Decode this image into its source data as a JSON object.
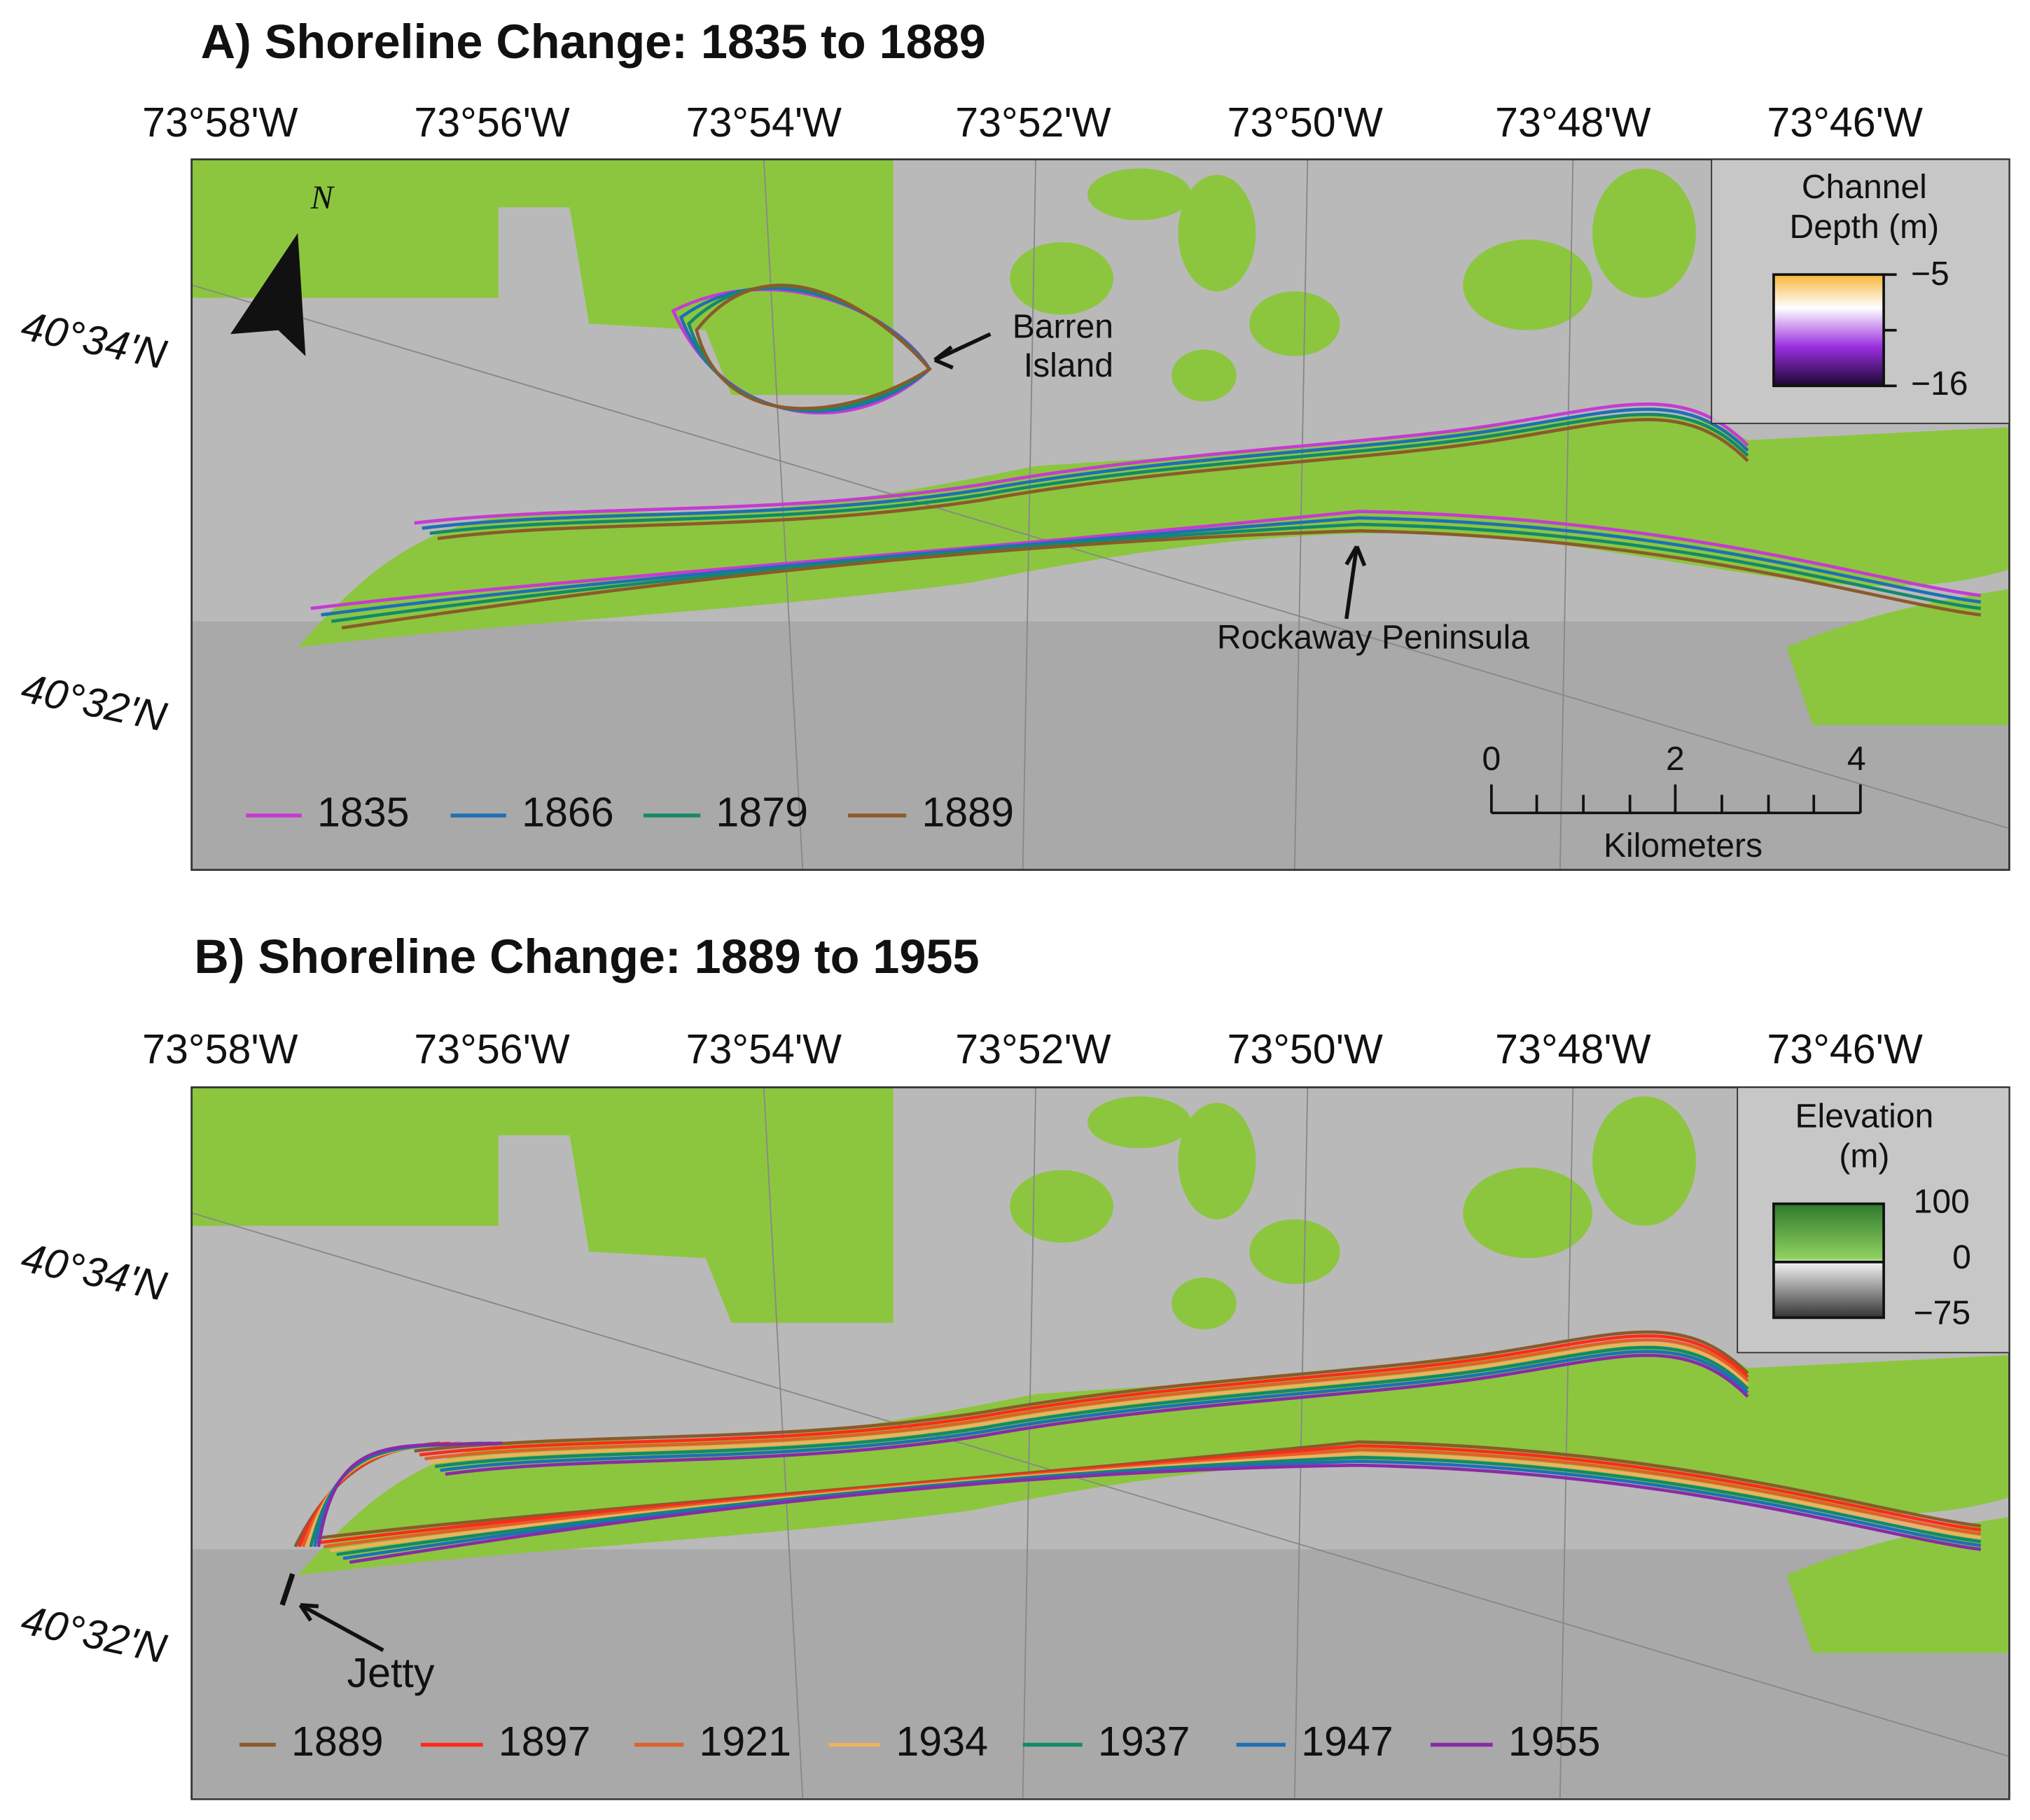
{
  "panels": [
    {
      "title": "A) Shoreline Change: 1835 to 1889",
      "longitude_labels": [
        "73°58'W",
        "73°56'W",
        "73°54'W",
        "73°52'W",
        "73°50'W",
        "73°48'W",
        "73°46'W"
      ],
      "latitude_labels": [
        "40°34'N",
        "40°32'N"
      ],
      "north_arrow": "N",
      "annotations": [
        "Barren",
        "Island",
        "Rockaway Peninsula"
      ],
      "legend": [
        {
          "name": "1835",
          "color": "#c63bd2"
        },
        {
          "name": "1866",
          "color": "#1f6fb5"
        },
        {
          "name": "1879",
          "color": "#14896a"
        },
        {
          "name": "1889",
          "color": "#8b5a2b"
        }
      ],
      "colorbar": {
        "title": [
          "Channel",
          "Depth (m)"
        ],
        "tick_labels": [
          "−5",
          "−16"
        ]
      },
      "scale_bar": {
        "tick_labels": [
          "0",
          "2",
          "4"
        ],
        "unit": "Kilometers"
      }
    },
    {
      "title": "B) Shoreline Change: 1889 to 1955",
      "longitude_labels": [
        "73°58'W",
        "73°56'W",
        "73°54'W",
        "73°52'W",
        "73°50'W",
        "73°48'W",
        "73°46'W"
      ],
      "latitude_labels": [
        "40°34'N",
        "40°32'N"
      ],
      "annotations": [
        "Jetty"
      ],
      "legend": [
        {
          "name": "1889",
          "color": "#8b5a2b"
        },
        {
          "name": "1897",
          "color": "#ff2a1a"
        },
        {
          "name": "1921",
          "color": "#e0602a"
        },
        {
          "name": "1934",
          "color": "#f0b060"
        },
        {
          "name": "1937",
          "color": "#14896a"
        },
        {
          "name": "1947",
          "color": "#1f6fb5"
        },
        {
          "name": "1955",
          "color": "#8a2aa8"
        }
      ],
      "colorbar": {
        "title": [
          "Elevation",
          "(m)"
        ],
        "tick_labels": [
          "100",
          "0",
          "−75"
        ]
      }
    }
  ]
}
